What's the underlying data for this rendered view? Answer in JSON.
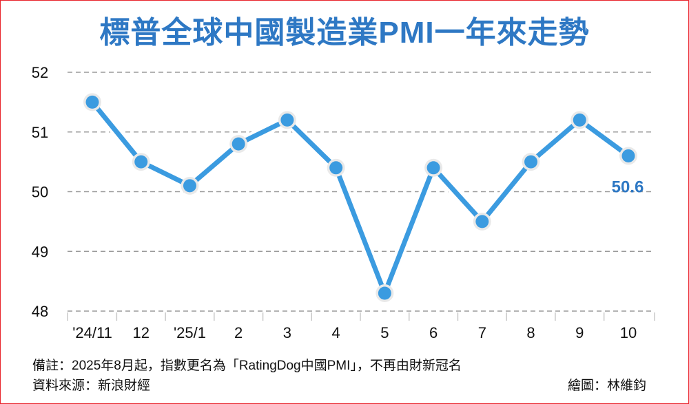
{
  "chart_data": {
    "type": "line",
    "title": "標普全球中國製造業PMI一年來走勢",
    "categories": [
      "'24/11",
      "12",
      "'25/1",
      "2",
      "3",
      "4",
      "5",
      "6",
      "7",
      "8",
      "9",
      "10"
    ],
    "series": [
      {
        "name": "PMI",
        "values": [
          51.5,
          50.5,
          50.1,
          50.8,
          51.2,
          50.4,
          48.3,
          50.4,
          49.5,
          50.5,
          51.2,
          50.6
        ]
      }
    ],
    "yticks": [
      48,
      49,
      50,
      51,
      52
    ],
    "ylim": [
      48,
      52
    ],
    "last_label": "50.6",
    "xlabel": "",
    "ylabel": "",
    "grid": "horizontal dashed",
    "line_color": "#3b9be0"
  },
  "footer": {
    "note": "備註：2025年8月起，指數更名為「RatingDog中國PMI」，不再由財新冠名",
    "source": "資料來源：新浪財經",
    "credit": "繪圖：林維鈞"
  }
}
